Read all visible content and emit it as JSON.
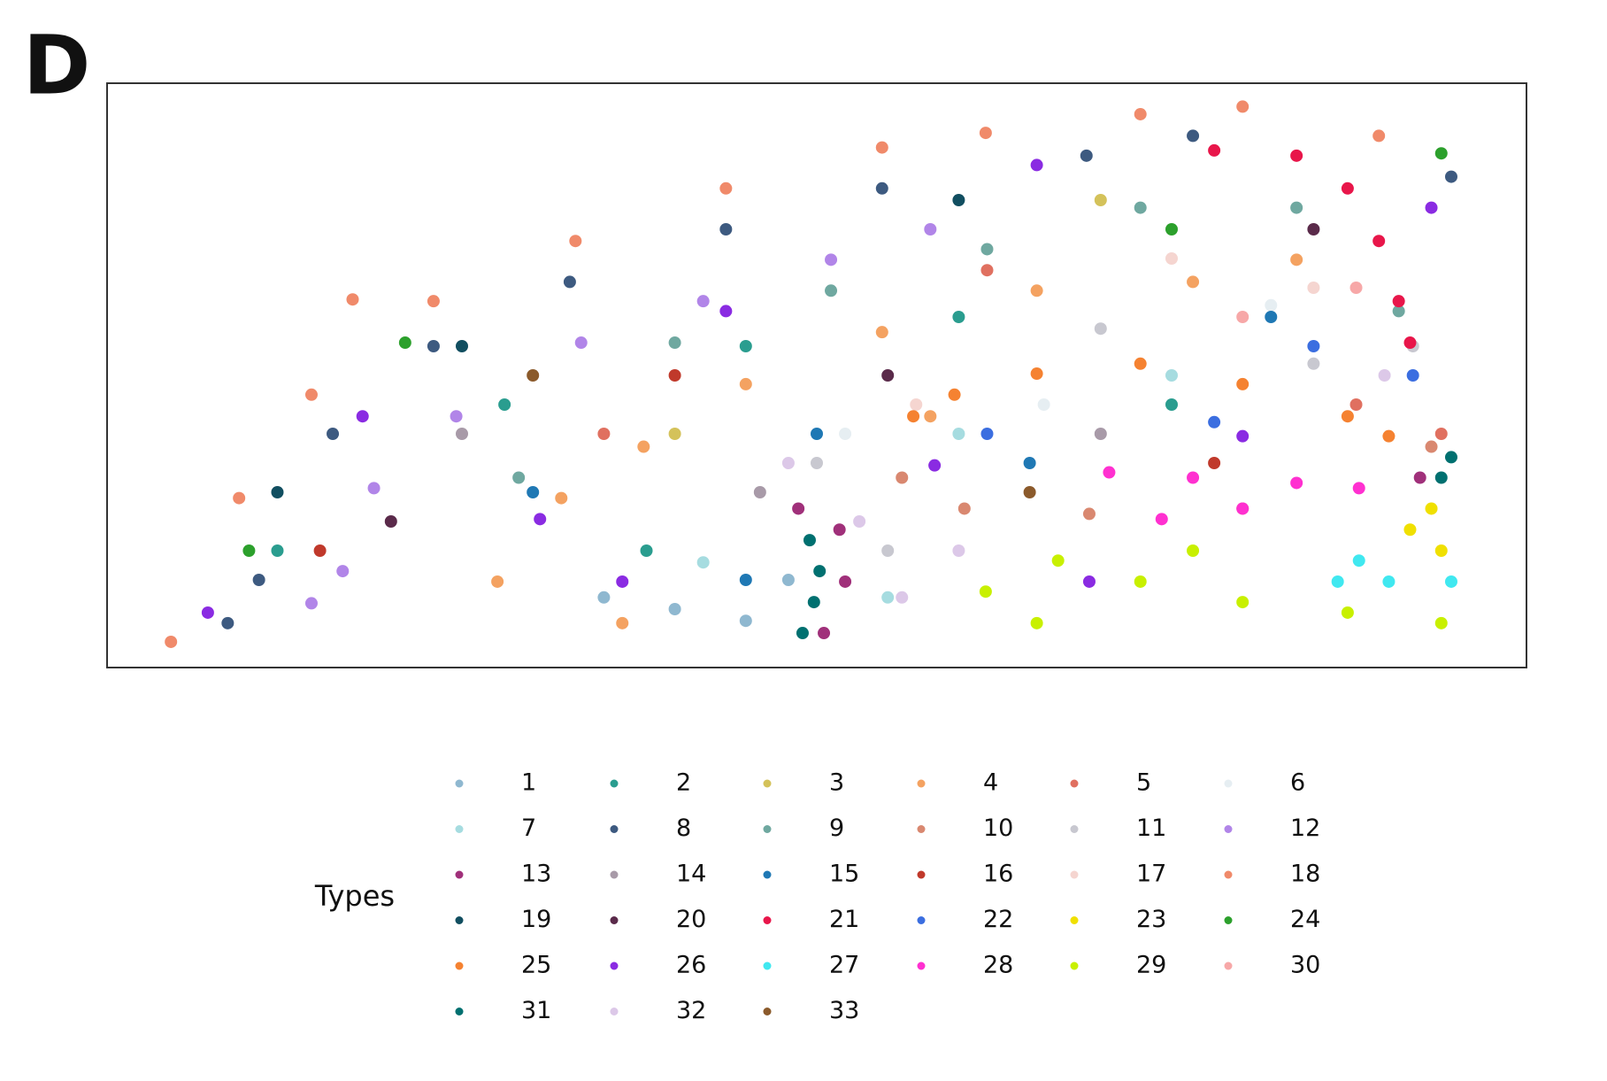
{
  "panel_label": "D",
  "chart_data": {
    "type": "scatter",
    "legend_title": "Types",
    "xlim": [
      0,
      100
    ],
    "ylim": [
      0,
      100
    ],
    "grid": false,
    "legend_columns": 6,
    "series": [
      {
        "name": "1",
        "color": "#8fb8d0",
        "x": [
          40,
          45,
          48,
          35
        ],
        "y": [
          10,
          8,
          15,
          12
        ]
      },
      {
        "name": "2",
        "color": "#2a9d8f",
        "x": [
          12,
          28,
          45,
          60,
          75,
          38
        ],
        "y": [
          20,
          45,
          55,
          60,
          45,
          20
        ]
      },
      {
        "name": "3",
        "color": "#d4c25a",
        "x": [
          70,
          40
        ],
        "y": [
          80,
          40
        ]
      },
      {
        "name": "4",
        "color": "#f4a261",
        "x": [
          27.5,
          32,
          37.8,
          45,
          54.6,
          65.5,
          76.5,
          83.8,
          36.3,
          58
        ],
        "y": [
          14.7,
          29,
          37.8,
          48.5,
          57.4,
          64.5,
          66,
          69.8,
          7.6,
          43
        ]
      },
      {
        "name": "5",
        "color": "#e07060",
        "x": [
          35,
          62,
          88,
          94
        ],
        "y": [
          40,
          68,
          45,
          40
        ]
      },
      {
        "name": "6",
        "color": "#e6eef2",
        "x": [
          52,
          66,
          82
        ],
        "y": [
          40,
          45,
          62
        ]
      },
      {
        "name": "7",
        "color": "#a6dce0",
        "x": [
          42,
          55,
          75,
          60
        ],
        "y": [
          18,
          12,
          50,
          40
        ]
      },
      {
        "name": "8",
        "color": "#3d5a80",
        "x": [
          10.7,
          15.9,
          23,
          32.6,
          43.6,
          54.6,
          69,
          76.5,
          94.7,
          8.5
        ],
        "y": [
          15,
          40,
          55,
          66,
          75,
          82,
          87.6,
          91,
          84,
          7.6
        ]
      },
      {
        "name": "9",
        "color": "#6fa8a0",
        "x": [
          40,
          51,
          62,
          72.8,
          83.8,
          91,
          29
        ],
        "y": [
          55.6,
          64.5,
          71.6,
          78.7,
          78.7,
          61,
          32.5
        ]
      },
      {
        "name": "10",
        "color": "#d98870",
        "x": [
          56,
          60.4,
          69.2,
          80,
          93.3
        ],
        "y": [
          32.5,
          27.2,
          26.3,
          27.2,
          37.8
        ]
      },
      {
        "name": "11",
        "color": "#c8c8d0",
        "x": [
          50,
          55,
          70,
          85,
          92
        ],
        "y": [
          35,
          20,
          58,
          52,
          55
        ]
      },
      {
        "name": "12",
        "color": "#b185e8",
        "x": [
          14.4,
          18.8,
          24.6,
          33.4,
          42,
          51,
          58,
          16.6
        ],
        "y": [
          11,
          30.7,
          43,
          55.6,
          62.7,
          69.8,
          75,
          16.5
        ]
      },
      {
        "name": "13",
        "color": "#a0307a",
        "x": [
          48.7,
          51.6,
          52,
          50.5,
          92.5
        ],
        "y": [
          27.2,
          23.6,
          14.7,
          5.9,
          32.5
        ]
      },
      {
        "name": "14",
        "color": "#a89aa8",
        "x": [
          25,
          46,
          70
        ],
        "y": [
          40,
          30,
          40
        ]
      },
      {
        "name": "15",
        "color": "#1f78b4",
        "x": [
          30,
          50,
          65,
          82,
          45
        ],
        "y": [
          30,
          40,
          35,
          60,
          15
        ]
      },
      {
        "name": "16",
        "color": "#c0392b",
        "x": [
          15,
          40,
          78
        ],
        "y": [
          20,
          50,
          35
        ]
      },
      {
        "name": "17",
        "color": "#f5d5d0",
        "x": [
          57,
          75,
          85
        ],
        "y": [
          45,
          70,
          65
        ]
      },
      {
        "name": "18",
        "color": "#f08a6a",
        "x": [
          4.5,
          9.3,
          14.4,
          23,
          33,
          43.6,
          54.6,
          61.9,
          72.8,
          80,
          89.6,
          17.3
        ],
        "y": [
          4.4,
          29,
          46.7,
          62.7,
          73,
          82,
          89,
          91.5,
          94.7,
          96,
          91,
          63
        ]
      },
      {
        "name": "19",
        "color": "#114e60",
        "x": [
          12,
          25,
          60
        ],
        "y": [
          30,
          55,
          80
        ]
      },
      {
        "name": "20",
        "color": "#5a2a4a",
        "x": [
          20,
          55,
          85
        ],
        "y": [
          25,
          50,
          75
        ]
      },
      {
        "name": "21",
        "color": "#e8164a",
        "x": [
          78,
          83.8,
          87.4,
          89.6,
          91,
          91.8
        ],
        "y": [
          88.5,
          87.6,
          82,
          73,
          62.7,
          55.6
        ]
      },
      {
        "name": "22",
        "color": "#3b6ee0",
        "x": [
          62,
          78,
          92,
          85
        ],
        "y": [
          40,
          42,
          50,
          55
        ]
      },
      {
        "name": "23",
        "color": "#f0e000",
        "x": [
          91.8,
          94,
          93.3
        ],
        "y": [
          23.6,
          20,
          27.2
        ]
      },
      {
        "name": "24",
        "color": "#2ca02c",
        "x": [
          21,
          10,
          75,
          94
        ],
        "y": [
          55.6,
          20,
          75,
          88
        ]
      },
      {
        "name": "25",
        "color": "#f58231",
        "x": [
          56.8,
          59.7,
          65.5,
          72.8,
          80,
          87.4,
          90.3
        ],
        "y": [
          43,
          46.7,
          50.3,
          52,
          48.5,
          43,
          39.6
        ]
      },
      {
        "name": "26",
        "color": "#8a2be2",
        "x": [
          7.1,
          18,
          30.5,
          43.6,
          58.3,
          69.2,
          80,
          93.3,
          65.5,
          36.3
        ],
        "y": [
          9.4,
          43,
          25.4,
          61,
          34.6,
          14.7,
          39.6,
          78.7,
          86,
          14.7
        ]
      },
      {
        "name": "27",
        "color": "#40e8f0",
        "x": [
          88.2,
          90.3,
          94.7,
          86.7
        ],
        "y": [
          18.3,
          14.7,
          14.7,
          14.7
        ]
      },
      {
        "name": "28",
        "color": "#ff30d0",
        "x": [
          70.6,
          76.5,
          83.8,
          88.2,
          74.3,
          80
        ],
        "y": [
          33.4,
          32.5,
          31.6,
          30.7,
          25.4,
          27.2
        ]
      },
      {
        "name": "29",
        "color": "#c8f000",
        "x": [
          61.9,
          67,
          72.8,
          80,
          87.4,
          94,
          65.5,
          76.5
        ],
        "y": [
          13,
          18.3,
          14.7,
          11.2,
          9.4,
          7.6,
          7.6,
          20
        ]
      },
      {
        "name": "30",
        "color": "#f7a8a8",
        "x": [
          80,
          88
        ],
        "y": [
          60,
          65
        ]
      },
      {
        "name": "31",
        "color": "#007070",
        "x": [
          49.5,
          50.2,
          49.8,
          49,
          94,
          94.7
        ],
        "y": [
          21.8,
          16.5,
          11.2,
          5.9,
          32.5,
          36
        ]
      },
      {
        "name": "32",
        "color": "#dcc8e8",
        "x": [
          53,
          56,
          48,
          90,
          60
        ],
        "y": [
          25,
          12,
          35,
          50,
          20
        ]
      },
      {
        "name": "33",
        "color": "#8b5a2b",
        "x": [
          30,
          65
        ],
        "y": [
          50,
          30
        ]
      }
    ]
  }
}
